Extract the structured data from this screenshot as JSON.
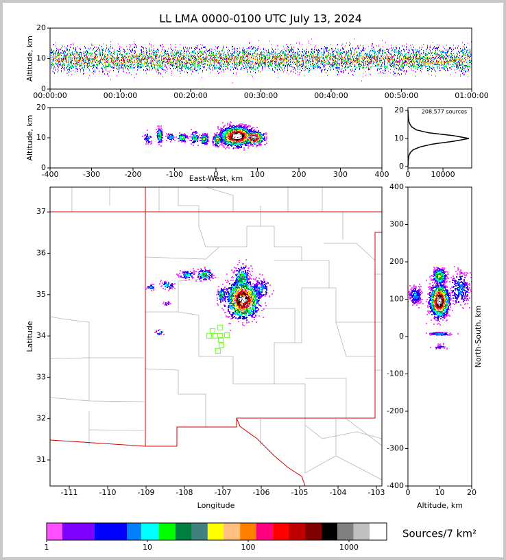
{
  "chart_data": [
    {
      "type": "time-height",
      "title": "LL LMA 0000-0100 UTC July 13, 2024",
      "ylabel": "Altitude, km",
      "xlim": [
        0,
        60
      ],
      "xticks": [
        {
          "value": 0,
          "label": "00:00:00"
        },
        {
          "value": 10,
          "label": "00:10:00"
        },
        {
          "value": 20,
          "label": "00:20:00"
        },
        {
          "value": 30,
          "label": "00:30:00"
        },
        {
          "value": 40,
          "label": "00:40:00"
        },
        {
          "value": 50,
          "label": "00:50:00"
        },
        {
          "value": 60,
          "label": "01:00:00"
        }
      ],
      "ylim": [
        0,
        20
      ],
      "yticks": [
        0,
        10,
        20
      ]
    },
    {
      "type": "east-west",
      "xlabel": "East-West, km",
      "ylabel": "Altitude, km",
      "xlim": [
        -400,
        400
      ],
      "xticks": [
        -400,
        -300,
        -200,
        -100,
        0,
        100,
        200,
        300,
        400
      ],
      "ylim": [
        0,
        20
      ],
      "yticks": [
        0,
        10,
        20
      ]
    },
    {
      "type": "altitude-histogram",
      "annotation": "208,577 sources",
      "altitudes": [
        0,
        1,
        2,
        3,
        4,
        5,
        6,
        7,
        8,
        9,
        10,
        11,
        12,
        13,
        14,
        15,
        16,
        17,
        18,
        19,
        20
      ],
      "values": [
        0,
        30,
        80,
        150,
        300,
        700,
        1500,
        3500,
        7000,
        13000,
        17400,
        13000,
        6000,
        2500,
        1200,
        600,
        300,
        150,
        80,
        40,
        20
      ],
      "xlim": [
        0,
        18200
      ],
      "xticks": [
        0,
        10000
      ],
      "ylim": [
        -0.5,
        21
      ],
      "yticks": [
        0,
        10,
        20
      ]
    },
    {
      "type": "map",
      "xlabel": "Longitude",
      "ylabel": "Latitude",
      "xlim": [
        -111.5,
        -102.857
      ],
      "xticks": [
        -111,
        -110,
        -109,
        -108,
        -107,
        -106,
        -105,
        -104,
        -103
      ],
      "ylim": [
        30.37,
        37.6
      ],
      "yticks": [
        31,
        32,
        33,
        34,
        35,
        36,
        37
      ],
      "stations": {
        "color": "#80ff40",
        "lon": [
          -107.357,
          -107.268,
          -107.071,
          -107.071,
          -106.893,
          -107.196,
          -107.054,
          -107.036,
          -107.125
        ],
        "lat": [
          34.003,
          34.119,
          34.202,
          34.003,
          34.02,
          34.003,
          33.904,
          33.771,
          33.638
        ]
      }
    },
    {
      "type": "north-south",
      "xlabel": "Altitude, km",
      "ylabel": "North-South, km",
      "xlim": [
        0,
        20
      ],
      "xticks": [
        0,
        10,
        20
      ],
      "ylim": [
        -400,
        400
      ],
      "yticks": [
        -400,
        -300,
        -200,
        -100,
        0,
        100,
        200,
        300,
        400
      ]
    },
    {
      "type": "colorbar",
      "label": "Sources/7 km²",
      "log": true,
      "xlim": [
        1,
        2366
      ],
      "xticks": [
        1,
        10,
        100,
        1000
      ],
      "bounds": [
        1,
        1.43,
        2.99,
        6.25,
        8.7,
        13,
        19,
        27.6,
        39.6,
        57,
        83,
        120,
        176,
        252,
        367,
        535,
        766,
        1110,
        1600,
        2366
      ],
      "colors": [
        "#ff50ff",
        "#8000ff",
        "#0000ff",
        "#0080ff",
        "#00ffff",
        "#00ff00",
        "#008040",
        "#408080",
        "#ffff00",
        "#ffc080",
        "#ff8000",
        "#ff0080",
        "#ff0000",
        "#c00000",
        "#800000",
        "#000000",
        "#808080",
        "#c0c0c0",
        "#ffffff"
      ]
    }
  ]
}
